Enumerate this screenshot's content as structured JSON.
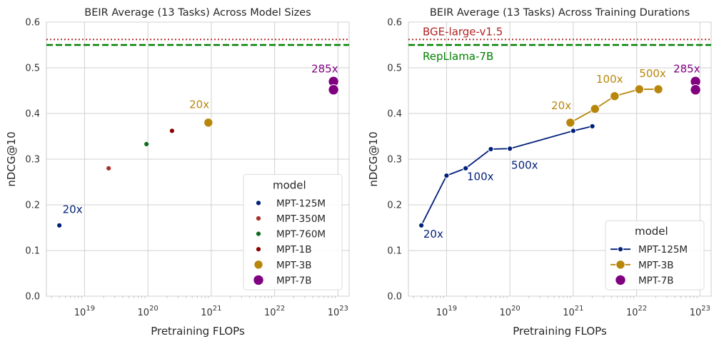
{
  "chart_data": [
    {
      "type": "scatter",
      "title": "BEIR Average (13 Tasks) Across Model Sizes",
      "xlabel": "Pretraining FLOPs",
      "ylabel": "nDCG@10",
      "xscale": "log",
      "xlim": [
        2.5e+18,
        1.5e+23
      ],
      "ylim": [
        0,
        0.6
      ],
      "yticks": [
        "0.0",
        "0.1",
        "0.2",
        "0.3",
        "0.4",
        "0.5",
        "0.6"
      ],
      "xticks": [
        {
          "base": "10",
          "exp": "19",
          "value": 1e+19
        },
        {
          "base": "10",
          "exp": "20",
          "value": 1e+20
        },
        {
          "base": "10",
          "exp": "21",
          "value": 1e+21
        },
        {
          "base": "10",
          "exp": "22",
          "value": 1e+22
        },
        {
          "base": "10",
          "exp": "23",
          "value": 1e+23
        }
      ],
      "grid": true,
      "hlines": [
        {
          "y": 0.562,
          "color": "#b22222",
          "style": "dotted"
        },
        {
          "y": 0.55,
          "color": "#008000",
          "style": "dashed"
        }
      ],
      "series": [
        {
          "name": "MPT-125M",
          "color": "#001f7a",
          "size": "small",
          "points": [
            {
              "x": 4e+18,
              "y": 0.155
            }
          ]
        },
        {
          "name": "MPT-350M",
          "color": "#a8302a",
          "size": "small",
          "points": [
            {
              "x": 2.4e+19,
              "y": 0.28
            }
          ]
        },
        {
          "name": "MPT-760M",
          "color": "#0f6b1f",
          "size": "small",
          "points": [
            {
              "x": 9.5e+19,
              "y": 0.333
            }
          ]
        },
        {
          "name": "MPT-1B",
          "color": "#8b0000",
          "size": "small",
          "points": [
            {
              "x": 2.4e+20,
              "y": 0.362
            }
          ]
        },
        {
          "name": "MPT-3B",
          "color": "#b8860b",
          "size": "medium",
          "points": [
            {
              "x": 9e+20,
              "y": 0.38
            }
          ]
        },
        {
          "name": "MPT-7B",
          "color": "#800080",
          "size": "large",
          "points": [
            {
              "x": 8.5e+22,
              "y": 0.47
            },
            {
              "x": 8.5e+22,
              "y": 0.452
            }
          ]
        }
      ],
      "annotations": [
        {
          "text": "20x",
          "x": 4.5e+18,
          "y": 0.182,
          "color": "#001f7a"
        },
        {
          "text": "20x",
          "x": 4.5e+20,
          "y": 0.412,
          "color": "#b8860b"
        },
        {
          "text": "285x",
          "x": 3.8e+22,
          "y": 0.49,
          "color": "#800080"
        }
      ],
      "legend": {
        "title": "model",
        "position": "lower-right",
        "entries": [
          {
            "label": "MPT-125M",
            "color": "#001f7a",
            "marker": "small"
          },
          {
            "label": "MPT-350M",
            "color": "#a8302a",
            "marker": "small"
          },
          {
            "label": "MPT-760M",
            "color": "#0f6b1f",
            "marker": "small"
          },
          {
            "label": "MPT-1B",
            "color": "#8b0000",
            "marker": "small"
          },
          {
            "label": "MPT-3B",
            "color": "#b8860b",
            "marker": "medium"
          },
          {
            "label": "MPT-7B",
            "color": "#800080",
            "marker": "large"
          }
        ]
      }
    },
    {
      "type": "line",
      "title": "BEIR Average (13 Tasks) Across Training Durations",
      "xlabel": "Pretraining FLOPs",
      "ylabel": "nDCG@10",
      "xscale": "log",
      "xlim": [
        2.5e+18,
        1.5e+23
      ],
      "ylim": [
        0,
        0.6
      ],
      "yticks": [
        "0.0",
        "0.1",
        "0.2",
        "0.3",
        "0.4",
        "0.5",
        "0.6"
      ],
      "xticks": [
        {
          "base": "10",
          "exp": "19",
          "value": 1e+19
        },
        {
          "base": "10",
          "exp": "20",
          "value": 1e+20
        },
        {
          "base": "10",
          "exp": "21",
          "value": 1e+21
        },
        {
          "base": "10",
          "exp": "22",
          "value": 1e+22
        },
        {
          "base": "10",
          "exp": "23",
          "value": 1e+23
        }
      ],
      "grid": true,
      "hlines": [
        {
          "y": 0.562,
          "color": "#b22222",
          "style": "dotted"
        },
        {
          "y": 0.55,
          "color": "#008000",
          "style": "dashed"
        }
      ],
      "hline_labels": [
        {
          "text": "BGE-large-v1.5",
          "x": 4.2e+18,
          "y": 0.571,
          "color": "#b22222"
        },
        {
          "text": "RepLlama-7B",
          "x": 4.2e+18,
          "y": 0.517,
          "color": "#008000"
        }
      ],
      "series": [
        {
          "name": "MPT-125M",
          "color": "#001f7a",
          "size": "small",
          "line": true,
          "points": [
            {
              "x": 4e+18,
              "y": 0.155
            },
            {
              "x": 1e+19,
              "y": 0.264
            },
            {
              "x": 2e+19,
              "y": 0.28
            },
            {
              "x": 5e+19,
              "y": 0.322
            },
            {
              "x": 1e+20,
              "y": 0.323
            },
            {
              "x": 1e+21,
              "y": 0.362
            },
            {
              "x": 2e+21,
              "y": 0.372
            }
          ]
        },
        {
          "name": "MPT-3B",
          "color": "#b8860b",
          "size": "medium",
          "line": true,
          "points": [
            {
              "x": 9e+20,
              "y": 0.38
            },
            {
              "x": 2.2e+21,
              "y": 0.41
            },
            {
              "x": 4.5e+21,
              "y": 0.438
            },
            {
              "x": 1.1e+22,
              "y": 0.453
            },
            {
              "x": 2.2e+22,
              "y": 0.453
            }
          ]
        },
        {
          "name": "MPT-7B",
          "color": "#800080",
          "size": "large",
          "line": false,
          "points": [
            {
              "x": 8.5e+22,
              "y": 0.47
            },
            {
              "x": 8.5e+22,
              "y": 0.452
            }
          ]
        }
      ],
      "annotations": [
        {
          "text": "20x",
          "x": 4.3e+18,
          "y": 0.128,
          "color": "#001f7a"
        },
        {
          "text": "100x",
          "x": 2.1e+19,
          "y": 0.254,
          "color": "#001f7a"
        },
        {
          "text": "500x",
          "x": 1.05e+20,
          "y": 0.279,
          "color": "#001f7a"
        },
        {
          "text": "20x",
          "x": 4.5e+20,
          "y": 0.409,
          "color": "#b8860b"
        },
        {
          "text": "100x",
          "x": 2.3e+21,
          "y": 0.467,
          "color": "#b8860b"
        },
        {
          "text": "500x",
          "x": 1.1e+22,
          "y": 0.48,
          "color": "#b8860b"
        },
        {
          "text": "285x",
          "x": 3.8e+22,
          "y": 0.49,
          "color": "#800080"
        }
      ],
      "legend": {
        "title": "model",
        "position": "lower-right",
        "entries": [
          {
            "label": "MPT-125M",
            "color": "#001f7a",
            "marker": "small",
            "line": true
          },
          {
            "label": "MPT-3B",
            "color": "#b8860b",
            "marker": "medium",
            "line": true
          },
          {
            "label": "MPT-7B",
            "color": "#800080",
            "marker": "large",
            "line": false
          }
        ]
      }
    }
  ]
}
